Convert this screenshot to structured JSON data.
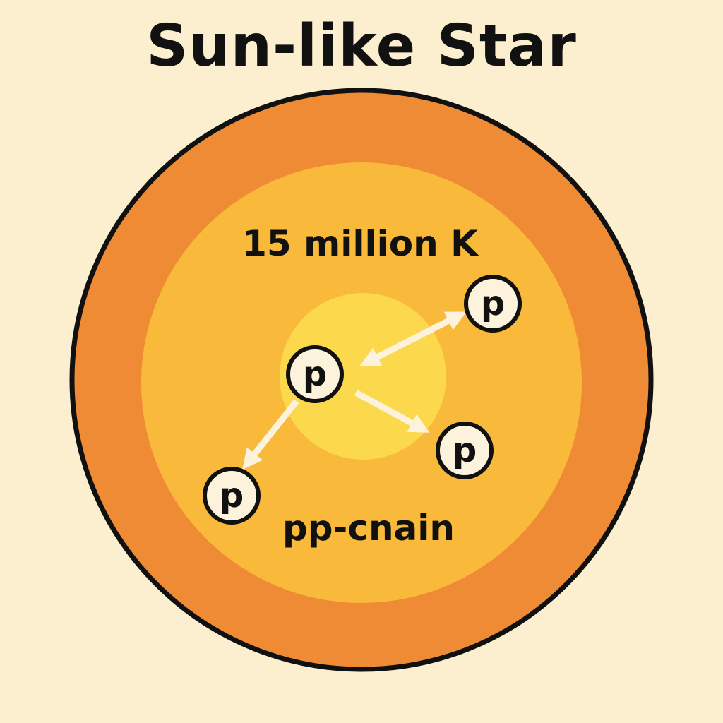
{
  "title": "Sun-like Star",
  "layers": {
    "outer_label": "",
    "middle_label": "15 million K",
    "core_label": "pp-cnain"
  },
  "protons": [
    {
      "name": "proton-center",
      "label": "p"
    },
    {
      "name": "proton-top-right",
      "label": "p"
    },
    {
      "name": "proton-bottom-right",
      "label": "p"
    },
    {
      "name": "proton-bottom-left",
      "label": "p"
    }
  ],
  "colors": {
    "background": "#fcefcf",
    "outer_layer": "#ef8a35",
    "middle_layer": "#f9b93a",
    "core": "#fbd84c",
    "outline": "#111111",
    "proton_fill": "#fdf3dc",
    "arrow": "#fdf3dc"
  }
}
